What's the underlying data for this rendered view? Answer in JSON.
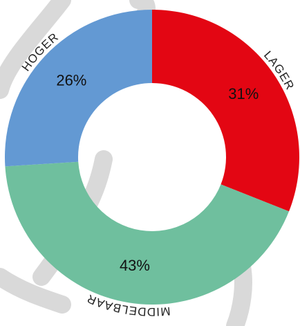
{
  "chart_data": {
    "type": "donut",
    "categories": [
      "LAGER",
      "MIDDELBAAR",
      "HOGER"
    ],
    "values": [
      31,
      43,
      26
    ],
    "value_labels": [
      "31%",
      "43%",
      "26%"
    ],
    "colors": [
      "#e30613",
      "#6fbf9e",
      "#6399d3"
    ]
  }
}
